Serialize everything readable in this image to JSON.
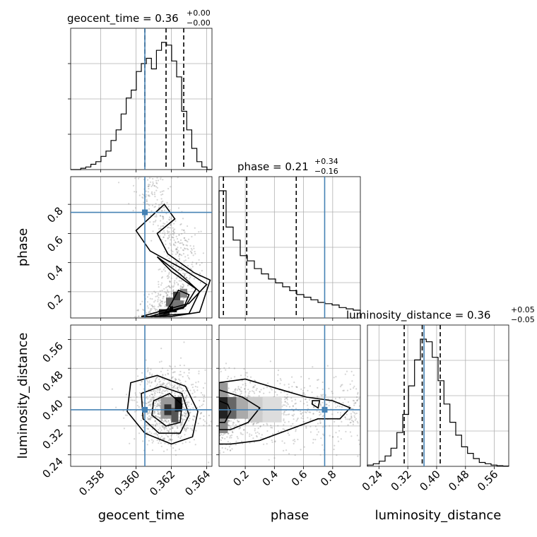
{
  "chart_data": {
    "type": "corner",
    "parameters": [
      "geocent_time",
      "phase",
      "luminosity_distance"
    ],
    "truth": {
      "geocent_time": 0.3605,
      "phase": 0.745,
      "luminosity_distance": 0.365
    },
    "truth_color": "#4682b4",
    "titles": [
      {
        "label": "geocent_time = 0.36",
        "plus": "+0.00",
        "minus": "−0.00"
      },
      {
        "label": "phase = 0.21",
        "plus": "+0.34",
        "minus": "−0.16"
      },
      {
        "label": "luminosity_distance = 0.36",
        "plus": "+0.05",
        "minus": "−0.05"
      }
    ],
    "ranges": {
      "geocent_time": [
        0.3563,
        0.3643
      ],
      "phase": [
        0.02,
        0.99
      ],
      "luminosity_distance": [
        0.208,
        0.6
      ]
    },
    "ticks": {
      "geocent_time": {
        "values": [
          0.358,
          0.36,
          0.362,
          0.364
        ],
        "labels": [
          "0.358",
          "0.360",
          "0.362",
          "0.364"
        ]
      },
      "phase": {
        "values": [
          0.2,
          0.4,
          0.6,
          0.8
        ],
        "labels": [
          "0.2",
          "0.4",
          "0.6",
          "0.8"
        ]
      },
      "luminosity_distance": {
        "values": [
          0.24,
          0.32,
          0.4,
          0.48,
          0.56
        ],
        "labels": [
          "0.24",
          "0.32",
          "0.40",
          "0.48",
          "0.56"
        ]
      }
    },
    "quantiles": {
      "geocent_time": [
        0.3605,
        0.3617,
        0.3627
      ],
      "phase": [
        0.05,
        0.21,
        0.55
      ],
      "luminosity_distance": [
        0.31,
        0.36,
        0.41
      ]
    },
    "histograms": {
      "geocent_time": [
        0.0,
        0.0,
        0.01,
        0.02,
        0.04,
        0.06,
        0.1,
        0.14,
        0.22,
        0.3,
        0.42,
        0.54,
        0.6,
        0.74,
        0.8,
        0.84,
        0.76,
        0.9,
        0.96,
        0.94,
        0.82,
        0.7,
        0.44,
        0.3,
        0.16,
        0.06,
        0.02,
        0.0
      ],
      "phase": [
        0.98,
        0.7,
        0.6,
        0.48,
        0.44,
        0.38,
        0.34,
        0.3,
        0.27,
        0.24,
        0.21,
        0.18,
        0.16,
        0.14,
        0.12,
        0.11,
        0.1,
        0.08,
        0.07,
        0.06
      ],
      "luminosity_distance": [
        0.01,
        0.02,
        0.04,
        0.08,
        0.14,
        0.26,
        0.4,
        0.62,
        0.82,
        0.98,
        0.96,
        0.84,
        0.66,
        0.48,
        0.34,
        0.24,
        0.15,
        0.1,
        0.06,
        0.03,
        0.02,
        0.01,
        0.005,
        0.002
      ]
    },
    "axis_labels": {
      "geocent_time": "geocent_time",
      "phase": "phase",
      "luminosity_distance": "luminosity_distance"
    },
    "grid": true
  }
}
